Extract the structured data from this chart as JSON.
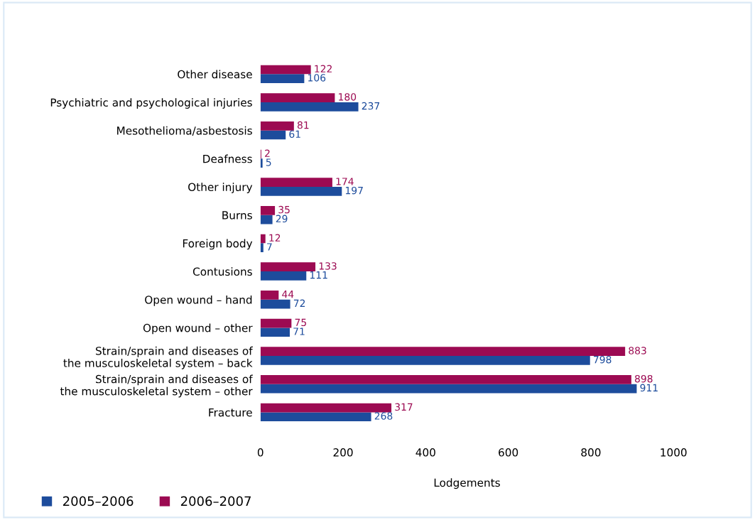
{
  "chart_data": {
    "type": "bar",
    "orientation": "horizontal",
    "xlabel": "Lodgements",
    "categories": [
      "Other disease",
      "Psychiatric and psychological injuries",
      "Mesothelioma/asbestosis",
      "Deafness",
      "Other injury",
      "Burns",
      "Foreign body",
      "Contusions",
      "Open wound – hand",
      "Open wound – other",
      "Strain/sprain and diseases of\nthe musculoskeletal system – back",
      "Strain/sprain and diseases of\nthe musculoskeletal system – other",
      "Fracture"
    ],
    "series": [
      {
        "name": "2005–2006",
        "color": "#1d4c9c",
        "values": [
          106,
          237,
          61,
          5,
          197,
          29,
          7,
          111,
          72,
          71,
          798,
          911,
          268
        ]
      },
      {
        "name": "2006–2007",
        "color": "#9c0a52",
        "values": [
          122,
          180,
          81,
          2,
          174,
          35,
          12,
          133,
          44,
          75,
          883,
          898,
          317
        ]
      }
    ],
    "xlim": [
      0,
      1000
    ],
    "xticks": [
      0,
      200,
      400,
      600,
      800,
      1000
    ],
    "data_labels": true,
    "grid": false,
    "legend": "bottom left"
  }
}
